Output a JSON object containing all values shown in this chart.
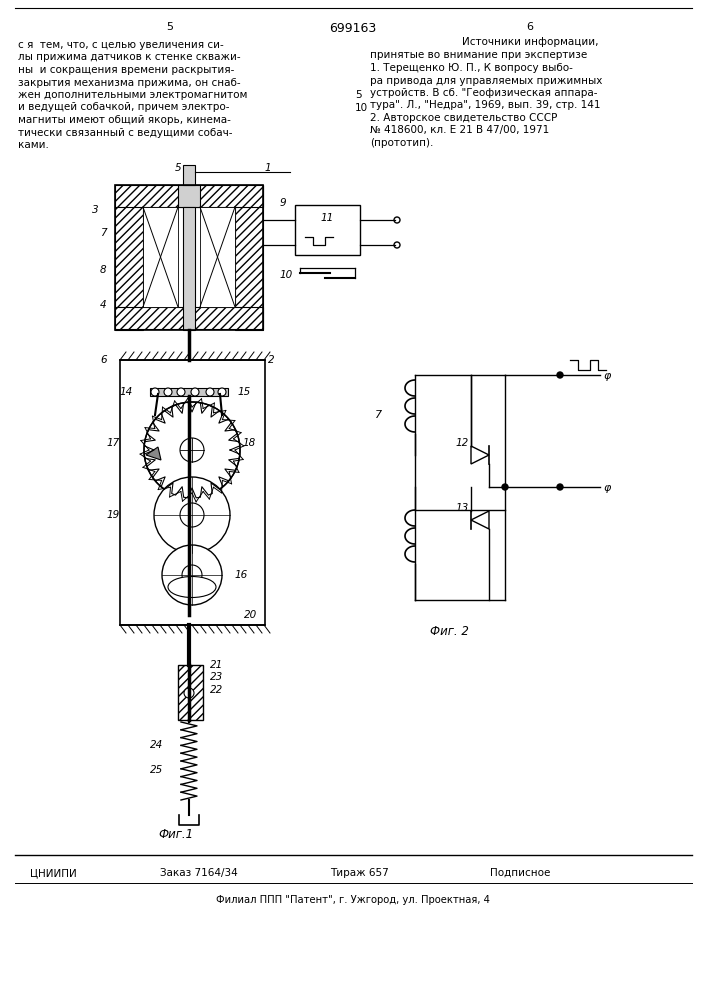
{
  "page_number_left": "5",
  "page_number_center": "699163",
  "page_number_right": "6",
  "left_column_text": [
    "с я  тем, что, с целью увеличения си-",
    "лы прижима датчиков к стенке скважи-",
    "ны  и сокращения времени раскрытия-",
    "закрытия механизма прижима, он снаб-",
    "жен дополнительными электромагнитом",
    "и ведущей собачкой, причем электро-",
    "магниты имеют общий якорь, кинема-",
    "тически связанный с ведущими собач-",
    "ками."
  ],
  "right_column_header": "Источники информации,",
  "right_column_subheader": "принятые во внимание при экспертизе",
  "right_column_refs": [
    "1. Терещенко Ю. П., К вопросу выбо-",
    "ра привода для управляемых прижимных",
    "устройств. В сб. \"Геофизическая аппара-",
    "тура\". Л., \"Недра\", 1969, вып. 39, стр. 141",
    "2. Авторское свидетельство СССР",
    "№ 418600, кл. Е 21 В 47/00, 1971",
    "(прототип)."
  ],
  "bottom_line1_parts": [
    "ЦНИИПИ",
    "Заказ 7164/34",
    "Тираж 657",
    "Подписное"
  ],
  "bottom_line1_x": [
    30,
    160,
    330,
    490
  ],
  "bottom_line2": "Филиал ППП \"Патент\", г. Ужгород, ул. Проектная, 4",
  "fig1_label": "Фиг.1",
  "fig2_label": "Фиг. 2",
  "bg_color": "#ffffff",
  "text_color": "#000000",
  "line_color": "#000000"
}
